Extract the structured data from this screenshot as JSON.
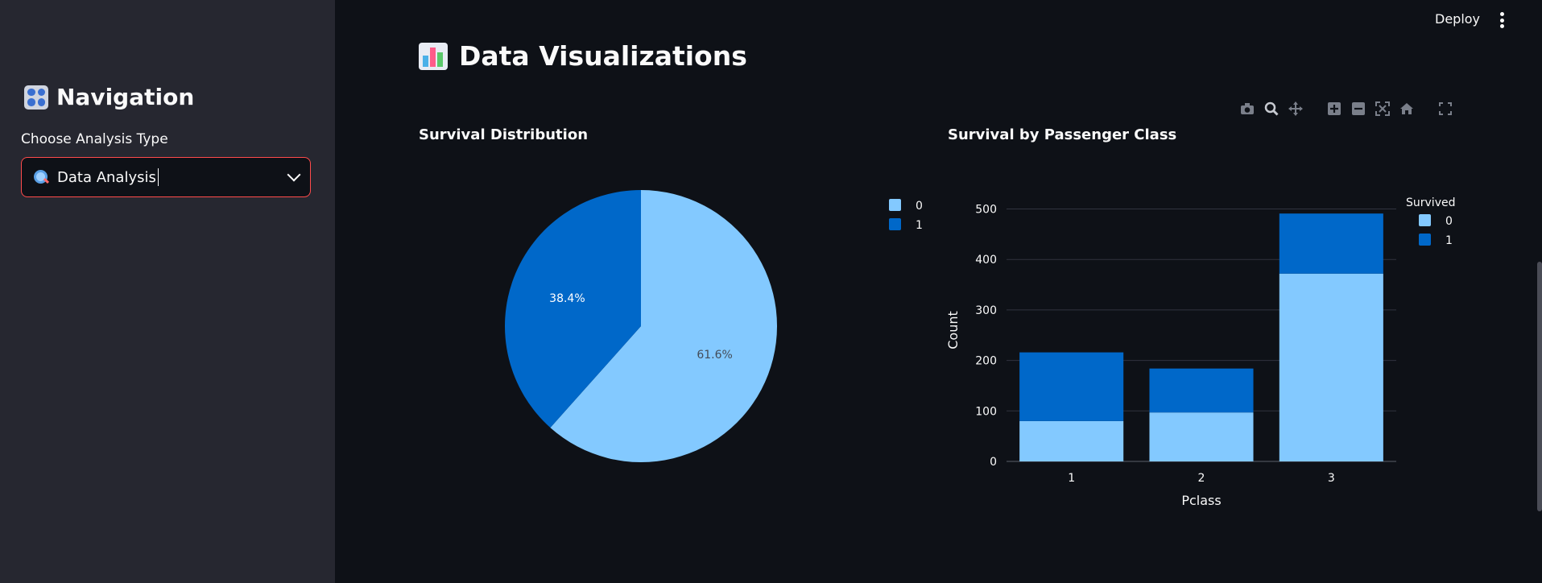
{
  "sidebar": {
    "title": "Navigation",
    "select_label": "Choose Analysis Type",
    "select_value": "Data Analysis"
  },
  "header": {
    "deploy_label": "Deploy"
  },
  "main": {
    "title": "Data Visualizations"
  },
  "colors": {
    "light_blue": "#83c9ff",
    "dark_blue": "#0068c9",
    "accent": "#ff4b4b"
  },
  "chart_data": [
    {
      "type": "pie",
      "title": "Survival Distribution",
      "labels": [
        "0",
        "1"
      ],
      "values": [
        61.6,
        38.4
      ],
      "text": [
        "61.6%",
        "38.4%"
      ],
      "legend": "top-right"
    },
    {
      "type": "bar",
      "title": "Survival by Passenger Class",
      "categories": [
        "1",
        "2",
        "3"
      ],
      "series": [
        {
          "name": "0",
          "values": [
            80,
            97,
            372
          ]
        },
        {
          "name": "1",
          "values": [
            136,
            87,
            119
          ]
        }
      ],
      "xlabel": "Pclass",
      "ylabel": "Count",
      "yticks": [
        "0",
        "100",
        "200",
        "300",
        "400",
        "500"
      ],
      "ylim": [
        0,
        520
      ],
      "legend_title": "Survived",
      "legend": "top-right"
    }
  ]
}
